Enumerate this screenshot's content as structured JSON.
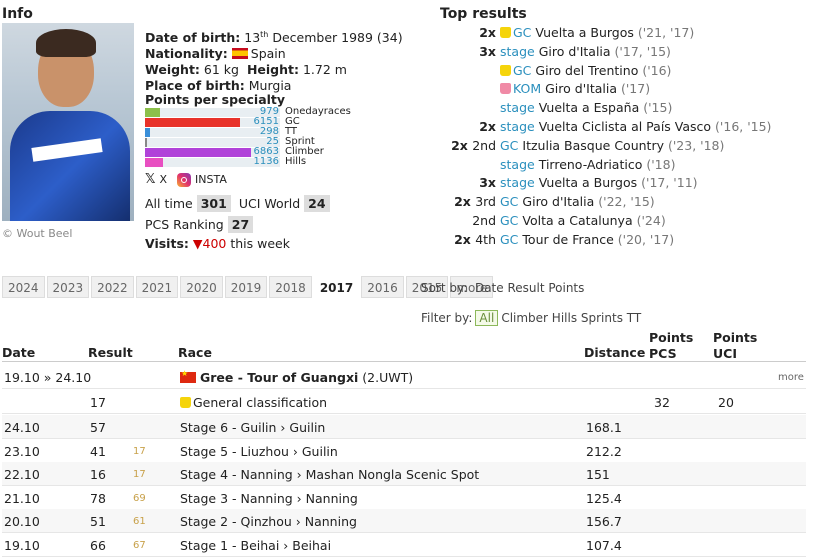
{
  "info": {
    "title": "Info",
    "photo_credit": "© Wout Beel",
    "dob_label": "Date of birth:",
    "dob_day": "13",
    "dob_suffix": "th",
    "dob_rest": " December 1989 (34)",
    "nationality_label": "Nationality:",
    "nationality": "Spain",
    "weight_label": "Weight:",
    "weight": "61 kg",
    "height_label": "Height:",
    "height": "1.72 m",
    "pob_label": "Place of birth:",
    "pob": "Murgia",
    "specialty_title": "Points per specialty",
    "specialties": [
      {
        "value": "979",
        "label": "Onedayraces",
        "pct": 0.142,
        "color": "#8cc04b"
      },
      {
        "value": "6151",
        "label": "GC",
        "pct": 0.896,
        "color": "#e8322a"
      },
      {
        "value": "298",
        "label": "TT",
        "pct": 0.043,
        "color": "#3a8fd9"
      },
      {
        "value": "25",
        "label": "Sprint",
        "pct": 0.004,
        "color": "#888888"
      },
      {
        "value": "6863",
        "label": "Climber",
        "pct": 1.0,
        "color": "#b042d9"
      },
      {
        "value": "1136",
        "label": "Hills",
        "pct": 0.165,
        "color": "#e84fc1"
      }
    ],
    "social_x": "X",
    "social_insta": "INSTA",
    "alltime_label": "All time",
    "alltime_rank": "301",
    "uci_label": "UCI World",
    "uci_rank": "24",
    "pcs_label": "PCS Ranking",
    "pcs_rank": "27",
    "visits_label": "Visits:",
    "visits_arrow": "▼",
    "visits_count": "400",
    "visits_suffix": "this week"
  },
  "top_results": {
    "title": "Top results",
    "items": [
      {
        "count": "2x",
        "pos": "",
        "jersey": "yellow",
        "cat": "GC",
        "race": "Vuelta a Burgos",
        "years": "('21, '17)"
      },
      {
        "count": "3x",
        "pos": "",
        "jersey": "",
        "cat": "stage",
        "race": "Giro d'Italia",
        "years": "('17, '15)"
      },
      {
        "count": "",
        "pos": "",
        "jersey": "yellow",
        "cat": "GC",
        "race": "Giro del Trentino",
        "years": "('16)"
      },
      {
        "count": "",
        "pos": "",
        "jersey": "pink",
        "cat": "KOM",
        "race": "Giro d'Italia",
        "years": "('17)"
      },
      {
        "count": "",
        "pos": "",
        "jersey": "",
        "cat": "stage",
        "race": "Vuelta a España",
        "years": "('15)"
      },
      {
        "count": "2x",
        "pos": "",
        "jersey": "",
        "cat": "stage",
        "race": "Vuelta Ciclista al País Vasco",
        "years": "('16, '15)"
      },
      {
        "count": "2x",
        "pos": "2nd",
        "jersey": "",
        "cat": "GC",
        "race": "Itzulia Basque Country",
        "years": "('23, '18)"
      },
      {
        "count": "",
        "pos": "",
        "jersey": "",
        "cat": "stage",
        "race": "Tirreno-Adriatico",
        "years": "('18)"
      },
      {
        "count": "3x",
        "pos": "",
        "jersey": "",
        "cat": "stage",
        "race": "Vuelta a Burgos",
        "years": "('17, '11)"
      },
      {
        "count": "2x",
        "pos": "3rd",
        "jersey": "",
        "cat": "GC",
        "race": "Giro d'Italia",
        "years": "('22, '15)"
      },
      {
        "count": "",
        "pos": "2nd",
        "jersey": "",
        "cat": "GC",
        "race": "Volta a Catalunya",
        "years": "('24)"
      },
      {
        "count": "2x",
        "pos": "4th",
        "jersey": "",
        "cat": "GC",
        "race": "Tour de France",
        "years": "('20, '17)"
      }
    ]
  },
  "seasons": {
    "tabs": [
      "2024",
      "2023",
      "2022",
      "2021",
      "2020",
      "2019",
      "2018",
      "2017",
      "2016",
      "2015",
      "more"
    ],
    "active": "2017",
    "sort_label": "Sort by:",
    "sort_options": "Date Result Points",
    "filter_label": "Filter by:",
    "filter_all": "All",
    "filter_options": "Climber Hills Sprints TT"
  },
  "table": {
    "headers": {
      "date": "Date",
      "result": "Result",
      "race": "Race",
      "distance": "Distance",
      "points_pcs_1": "Points",
      "points_pcs_2": "PCS",
      "points_uci_1": "Points",
      "points_uci_2": "UCI"
    },
    "race_row": {
      "date": "19.10 » 24.10",
      "race_bold": "Gree - Tour of Guangxi",
      "race_class": "(2.UWT)",
      "more": "more"
    },
    "gc_row": {
      "result": "17",
      "race": "General classification",
      "pcs": "32",
      "uci": "20"
    },
    "stages": [
      {
        "date": "24.10",
        "result": "57",
        "gc": "",
        "race": "Stage 6 - Guilin › Guilin",
        "distance": "168.1"
      },
      {
        "date": "23.10",
        "result": "41",
        "gc": "17",
        "race": "Stage 5 - Liuzhou › Guilin",
        "distance": "212.2"
      },
      {
        "date": "22.10",
        "result": "16",
        "gc": "17",
        "race": "Stage 4 - Nanning › Mashan Nongla Scenic Spot",
        "distance": "151"
      },
      {
        "date": "21.10",
        "result": "78",
        "gc": "69",
        "race": "Stage 3 - Nanning › Nanning",
        "distance": "125.4"
      },
      {
        "date": "20.10",
        "result": "51",
        "gc": "61",
        "race": "Stage 2 - Qinzhou › Nanning",
        "distance": "156.7"
      },
      {
        "date": "19.10",
        "result": "66",
        "gc": "67",
        "race": "Stage 1 - Beihai › Beihai",
        "distance": "107.4"
      }
    ]
  }
}
